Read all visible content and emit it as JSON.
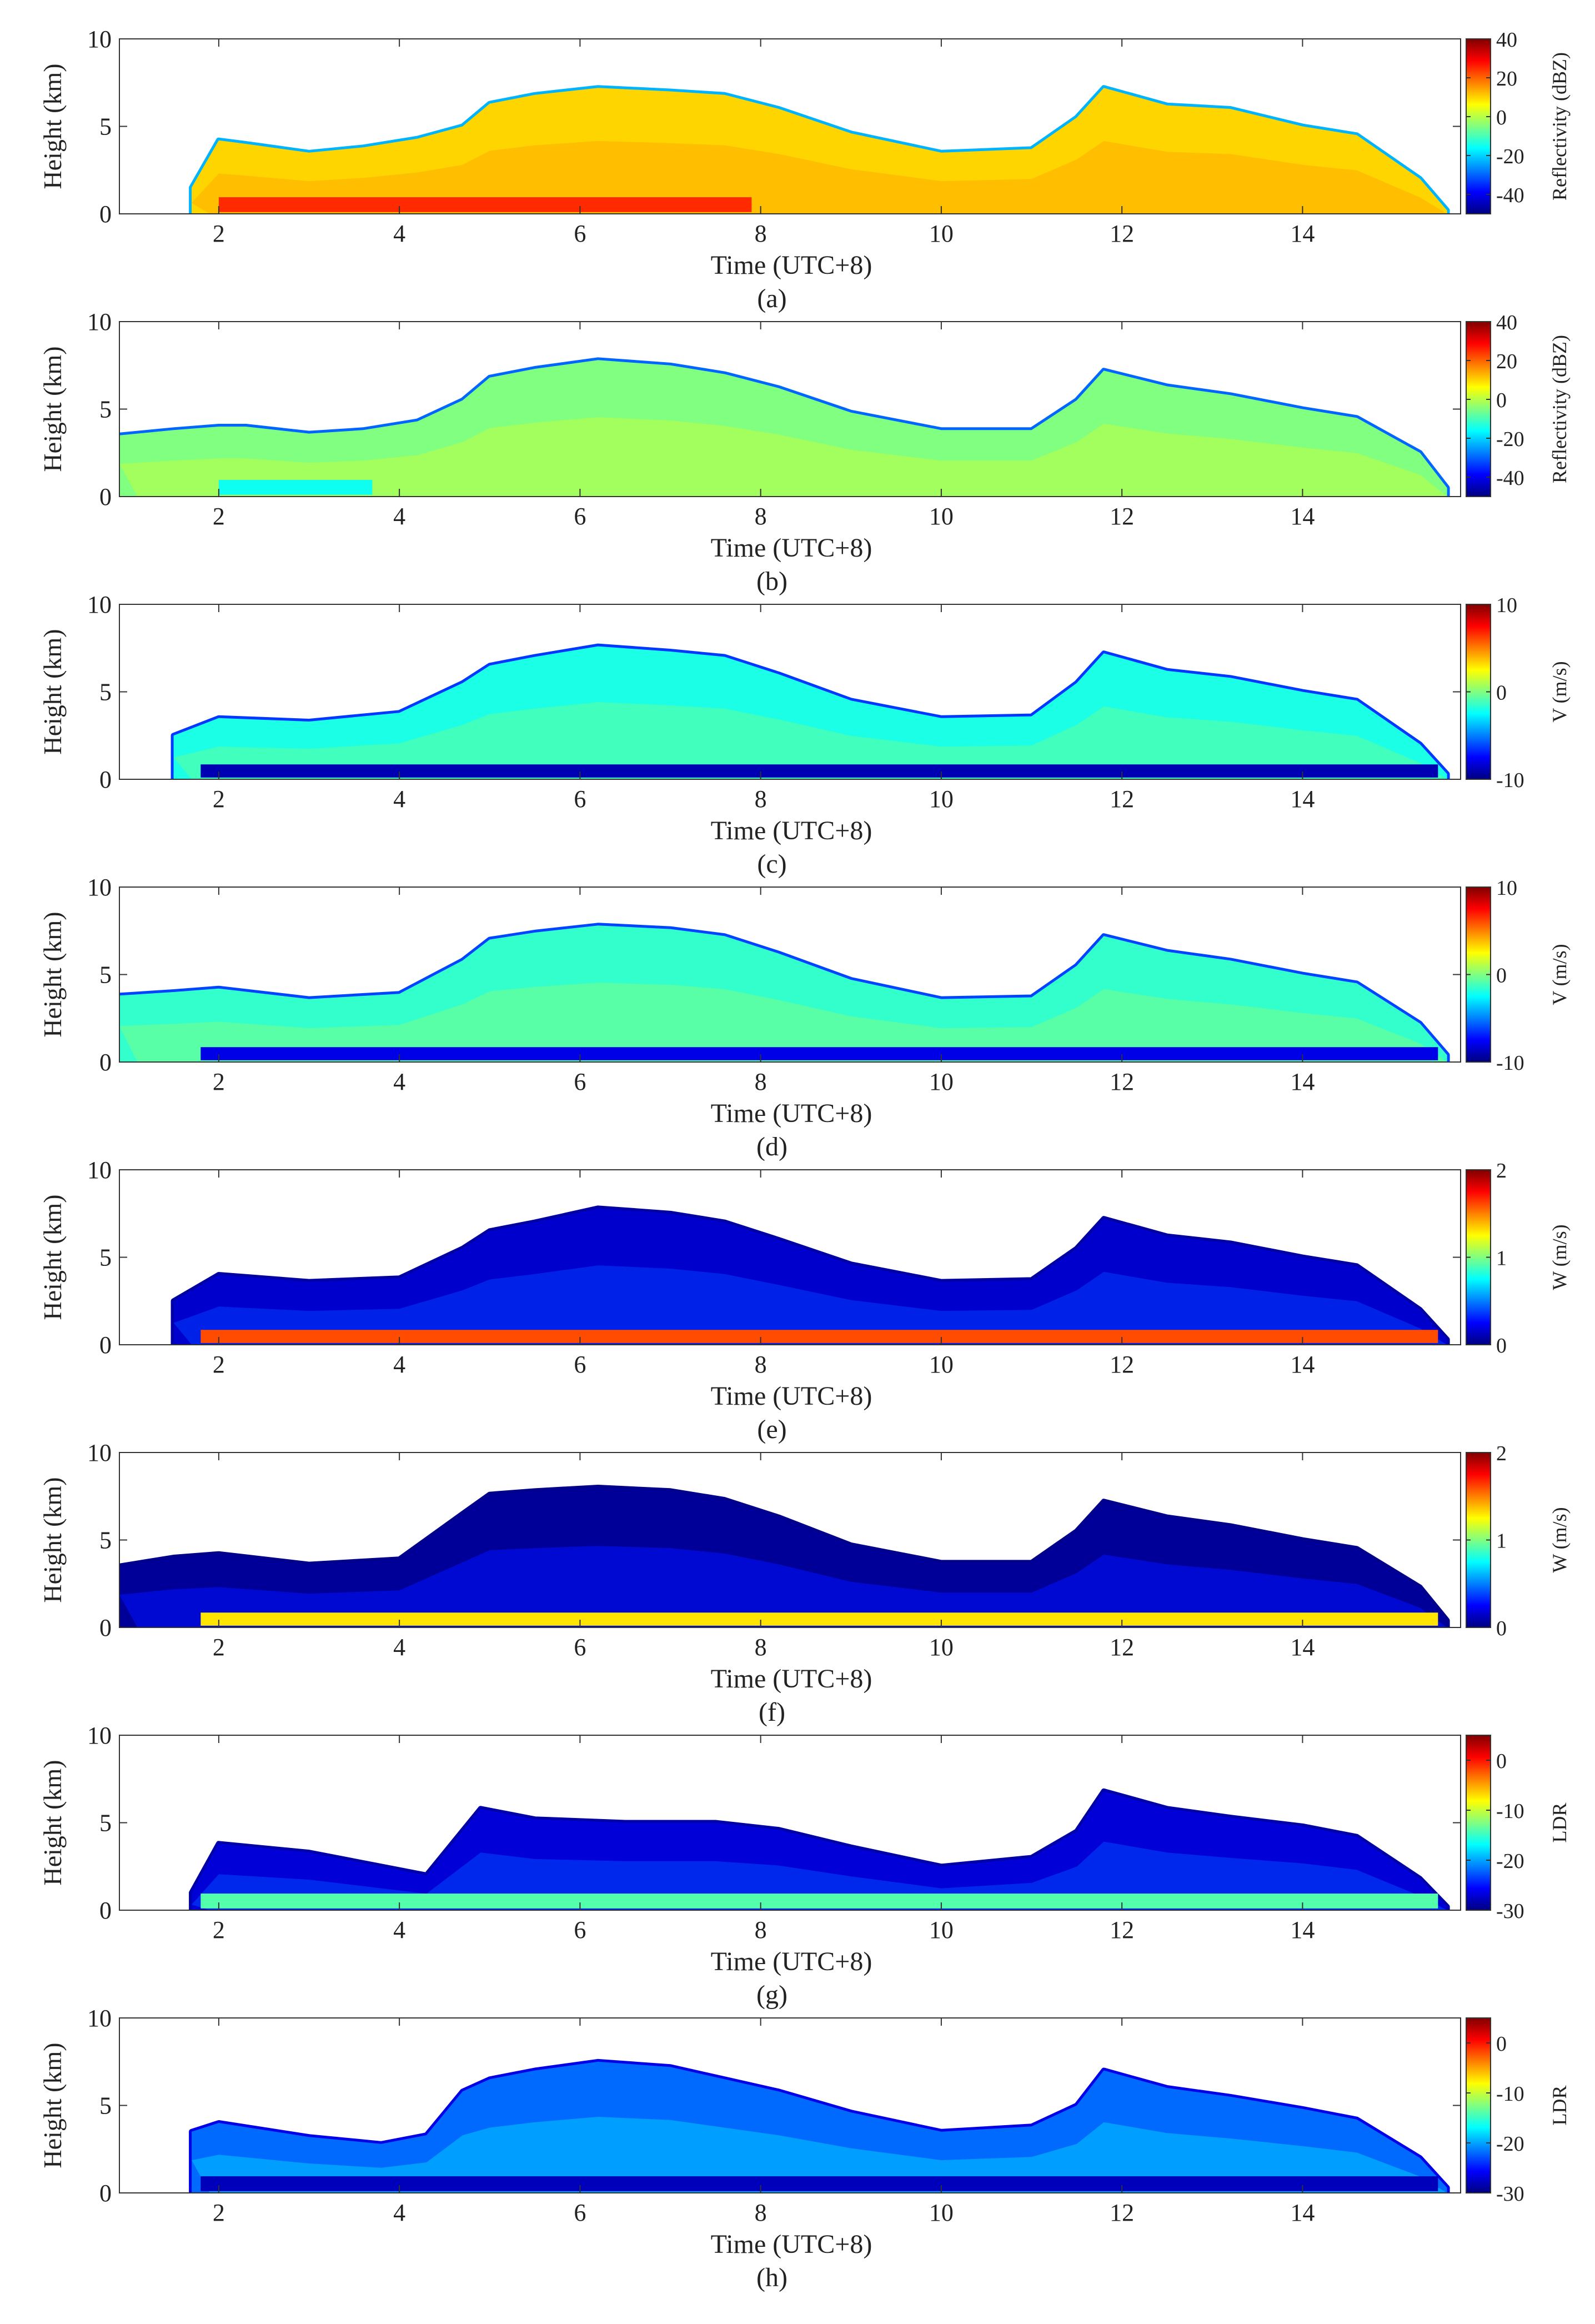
{
  "chart_data": [
    {
      "type": "heatmap",
      "panel": "(a)",
      "xlabel": "Time (UTC+8)",
      "ylabel": "Height (km)",
      "xlim": [
        0.9,
        15.75
      ],
      "ylim": [
        0,
        10
      ],
      "xticks": [
        2,
        4,
        6,
        8,
        10,
        12,
        14
      ],
      "yticks": [
        0,
        5,
        10
      ],
      "colorbar": {
        "label": "Reflectivity (dBZ)",
        "range": [
          -50,
          40
        ],
        "ticks": [
          40,
          20,
          0,
          -20,
          -40
        ]
      },
      "echo_top_km": {
        "t": [
          1.7,
          2.0,
          2.3,
          3.0,
          3.6,
          4.2,
          4.7,
          5.0,
          5.5,
          6.2,
          7.0,
          7.6,
          8.2,
          9.0,
          10.0,
          11.0,
          11.5,
          11.8,
          12.5,
          13.2,
          14.0,
          14.6,
          15.3,
          15.6
        ],
        "h": [
          1.5,
          4.2,
          4.0,
          3.5,
          3.8,
          4.3,
          5.0,
          6.3,
          6.8,
          7.2,
          7.0,
          6.8,
          6.0,
          4.6,
          3.5,
          3.7,
          5.5,
          7.2,
          6.2,
          6.0,
          5.0,
          4.5,
          2.0,
          0.2
        ]
      },
      "core_dbz": 10,
      "bright_band": {
        "height_km": 0.6,
        "dbz": 25,
        "t_range": [
          2.0,
          7.9
        ]
      }
    },
    {
      "type": "heatmap",
      "panel": "(b)",
      "xlabel": "Time (UTC+8)",
      "ylabel": "Height (km)",
      "xlim": [
        0.9,
        15.75
      ],
      "ylim": [
        0,
        10
      ],
      "xticks": [
        2,
        4,
        6,
        8,
        10,
        12,
        14
      ],
      "yticks": [
        0,
        5,
        10
      ],
      "colorbar": {
        "label": "Reflectivity (dBZ)",
        "range": [
          -50,
          40
        ],
        "ticks": [
          40,
          20,
          0,
          -20,
          -40
        ]
      },
      "echo_top_km": {
        "t": [
          0.9,
          1.5,
          2.0,
          2.3,
          3.0,
          3.6,
          4.2,
          4.7,
          5.0,
          5.5,
          6.2,
          7.0,
          7.6,
          8.2,
          9.0,
          10.0,
          11.0,
          11.5,
          11.8,
          12.5,
          13.2,
          14.0,
          14.6,
          15.3,
          15.6
        ],
        "h": [
          3.5,
          3.8,
          4.0,
          4.0,
          3.6,
          3.8,
          4.3,
          5.5,
          6.8,
          7.3,
          7.8,
          7.5,
          7.0,
          6.2,
          4.8,
          3.8,
          3.8,
          5.5,
          7.2,
          6.3,
          5.8,
          5.0,
          4.5,
          2.5,
          0.5
        ]
      },
      "core_dbz": -5,
      "bright_band": {
        "height_km": 0.6,
        "dbz": -15,
        "t_range": [
          2.0,
          3.7
        ]
      }
    },
    {
      "type": "heatmap",
      "panel": "(c)",
      "xlabel": "Time (UTC+8)",
      "ylabel": "Height (km)",
      "xlim": [
        0.9,
        15.75
      ],
      "ylim": [
        0,
        10
      ],
      "xticks": [
        2,
        4,
        6,
        8,
        10,
        12,
        14
      ],
      "yticks": [
        0,
        5,
        10
      ],
      "colorbar": {
        "label": "V (m/s)",
        "range": [
          -10,
          10
        ],
        "ticks": [
          10,
          0,
          -10
        ]
      },
      "echo_top_km": {
        "t": [
          1.5,
          2.0,
          3.0,
          4.0,
          4.7,
          5.0,
          5.5,
          6.2,
          7.0,
          7.6,
          8.2,
          9.0,
          10.0,
          11.0,
          11.5,
          11.8,
          12.5,
          13.2,
          14.0,
          14.6,
          15.3,
          15.6
        ],
        "h": [
          2.5,
          3.5,
          3.3,
          3.8,
          5.5,
          6.5,
          7.0,
          7.6,
          7.3,
          7.0,
          6.0,
          4.5,
          3.5,
          3.6,
          5.5,
          7.2,
          6.2,
          5.8,
          5.0,
          4.5,
          2.0,
          0.3
        ]
      },
      "core_v": -2,
      "bright_band": {
        "height_km": 0.5,
        "v": -9,
        "t_range": [
          1.8,
          15.5
        ]
      }
    },
    {
      "type": "heatmap",
      "panel": "(d)",
      "xlabel": "Time (UTC+8)",
      "ylabel": "Height (km)",
      "xlim": [
        0.9,
        15.75
      ],
      "ylim": [
        0,
        10
      ],
      "xticks": [
        2,
        4,
        6,
        8,
        10,
        12,
        14
      ],
      "yticks": [
        0,
        5,
        10
      ],
      "colorbar": {
        "label": "V (m/s)",
        "range": [
          -10,
          10
        ],
        "ticks": [
          10,
          0,
          -10
        ]
      },
      "echo_top_km": {
        "t": [
          0.9,
          1.5,
          2.0,
          3.0,
          4.0,
          4.7,
          5.0,
          5.5,
          6.2,
          7.0,
          7.6,
          8.2,
          9.0,
          10.0,
          11.0,
          11.5,
          11.8,
          12.5,
          13.2,
          14.0,
          14.6,
          15.3,
          15.6
        ],
        "h": [
          3.8,
          4.0,
          4.2,
          3.6,
          3.9,
          5.8,
          7.0,
          7.4,
          7.8,
          7.6,
          7.2,
          6.2,
          4.7,
          3.6,
          3.7,
          5.5,
          7.2,
          6.3,
          5.8,
          5.0,
          4.5,
          2.2,
          0.4
        ]
      },
      "core_v": -1.5,
      "bright_band": {
        "height_km": 0.5,
        "v": -8,
        "t_range": [
          1.8,
          15.5
        ]
      }
    },
    {
      "type": "heatmap",
      "panel": "(e)",
      "xlabel": "Time (UTC+8)",
      "ylabel": "Height (km)",
      "xlim": [
        0.9,
        15.75
      ],
      "ylim": [
        0,
        10
      ],
      "xticks": [
        2,
        4,
        6,
        8,
        10,
        12,
        14
      ],
      "yticks": [
        0,
        5,
        10
      ],
      "colorbar": {
        "label": "W (m/s)",
        "range": [
          0,
          2
        ],
        "ticks": [
          2,
          1,
          0
        ]
      },
      "echo_top_km": {
        "t": [
          1.5,
          2.0,
          3.0,
          4.0,
          4.7,
          5.0,
          5.5,
          6.2,
          7.0,
          7.6,
          8.2,
          9.0,
          10.0,
          11.0,
          11.5,
          11.8,
          12.5,
          13.2,
          14.0,
          14.6,
          15.3,
          15.6
        ],
        "h": [
          2.5,
          4.0,
          3.6,
          3.8,
          5.5,
          6.5,
          7.0,
          7.8,
          7.5,
          7.0,
          6.0,
          4.6,
          3.6,
          3.7,
          5.5,
          7.2,
          6.2,
          5.8,
          5.0,
          4.5,
          2.0,
          0.3
        ]
      },
      "core_w": 0.15,
      "bright_band": {
        "height_km": 0.5,
        "w": 1.6,
        "t_range": [
          1.8,
          15.5
        ]
      }
    },
    {
      "type": "heatmap",
      "panel": "(f)",
      "xlabel": "Time (UTC+8)",
      "ylabel": "Height (km)",
      "xlim": [
        0.9,
        15.75
      ],
      "ylim": [
        0,
        10
      ],
      "xticks": [
        2,
        4,
        6,
        8,
        10,
        12,
        14
      ],
      "yticks": [
        0,
        5,
        10
      ],
      "colorbar": {
        "label": "W (m/s)",
        "range": [
          0,
          2
        ],
        "ticks": [
          2,
          1,
          0
        ]
      },
      "echo_top_km": {
        "t": [
          0.9,
          1.5,
          2.0,
          3.0,
          4.0,
          4.7,
          5.0,
          5.5,
          6.2,
          7.0,
          7.6,
          8.2,
          9.0,
          10.0,
          11.0,
          11.5,
          11.8,
          12.5,
          13.2,
          14.0,
          14.6,
          15.3,
          15.6
        ],
        "h": [
          3.5,
          4.0,
          4.2,
          3.6,
          3.9,
          6.5,
          7.6,
          7.8,
          8.0,
          7.8,
          7.3,
          6.3,
          4.7,
          3.7,
          3.7,
          5.5,
          7.2,
          6.3,
          5.8,
          5.0,
          4.5,
          2.3,
          0.4
        ]
      },
      "core_w": 0.05,
      "bright_band": {
        "height_km": 0.5,
        "w": 1.3,
        "t_range": [
          1.8,
          15.5
        ]
      }
    },
    {
      "type": "heatmap",
      "panel": "(g)",
      "xlabel": "Time (UTC+8)",
      "ylabel": "Height (km)",
      "xlim": [
        0.9,
        15.75
      ],
      "ylim": [
        0,
        10
      ],
      "xticks": [
        2,
        4,
        6,
        8,
        10,
        12,
        14
      ],
      "yticks": [
        0,
        5,
        10
      ],
      "colorbar": {
        "label": "LDR",
        "range": [
          -30,
          5
        ],
        "ticks": [
          0,
          -10,
          -20,
          -30
        ]
      },
      "echo_top_km": {
        "t": [
          1.7,
          2.0,
          3.0,
          3.8,
          4.3,
          4.9,
          5.5,
          6.5,
          7.5,
          8.2,
          9.0,
          10.0,
          11.0,
          11.5,
          11.8,
          12.5,
          13.2,
          14.0,
          14.6,
          15.3,
          15.6
        ],
        "h": [
          1.0,
          3.8,
          3.3,
          2.5,
          2.0,
          5.8,
          5.2,
          5.0,
          5.0,
          4.6,
          3.6,
          2.5,
          3.0,
          4.5,
          6.8,
          5.8,
          5.3,
          4.8,
          4.2,
          1.8,
          0.2
        ]
      },
      "core_ldr": -27,
      "bright_band": {
        "height_km": 0.6,
        "ldr": -14,
        "t_range": [
          1.8,
          15.5
        ]
      }
    },
    {
      "type": "heatmap",
      "panel": "(h)",
      "xlabel": "Time (UTC+8)",
      "ylabel": "Height (km)",
      "xlim": [
        0.9,
        15.75
      ],
      "ylim": [
        0,
        10
      ],
      "xticks": [
        2,
        4,
        6,
        8,
        10,
        12,
        14
      ],
      "yticks": [
        0,
        5,
        10
      ],
      "colorbar": {
        "label": "LDR",
        "range": [
          -30,
          5
        ],
        "ticks": [
          0,
          -10,
          -20,
          -30
        ]
      },
      "echo_top_km": {
        "t": [
          1.7,
          2.0,
          3.0,
          3.8,
          4.3,
          4.7,
          5.0,
          5.5,
          6.2,
          7.0,
          7.6,
          8.2,
          9.0,
          10.0,
          11.0,
          11.5,
          11.8,
          12.5,
          13.2,
          14.0,
          14.6,
          15.3,
          15.6
        ],
        "h": [
          3.5,
          4.0,
          3.2,
          2.8,
          3.3,
          5.8,
          6.5,
          7.0,
          7.5,
          7.2,
          6.5,
          5.8,
          4.6,
          3.5,
          3.8,
          5.0,
          7.0,
          6.0,
          5.5,
          4.8,
          4.2,
          2.0,
          0.3
        ]
      },
      "core_ldr": -22,
      "bright_band": {
        "height_km": 0.6,
        "ldr": -28,
        "t_range": [
          1.8,
          15.5
        ]
      }
    }
  ]
}
